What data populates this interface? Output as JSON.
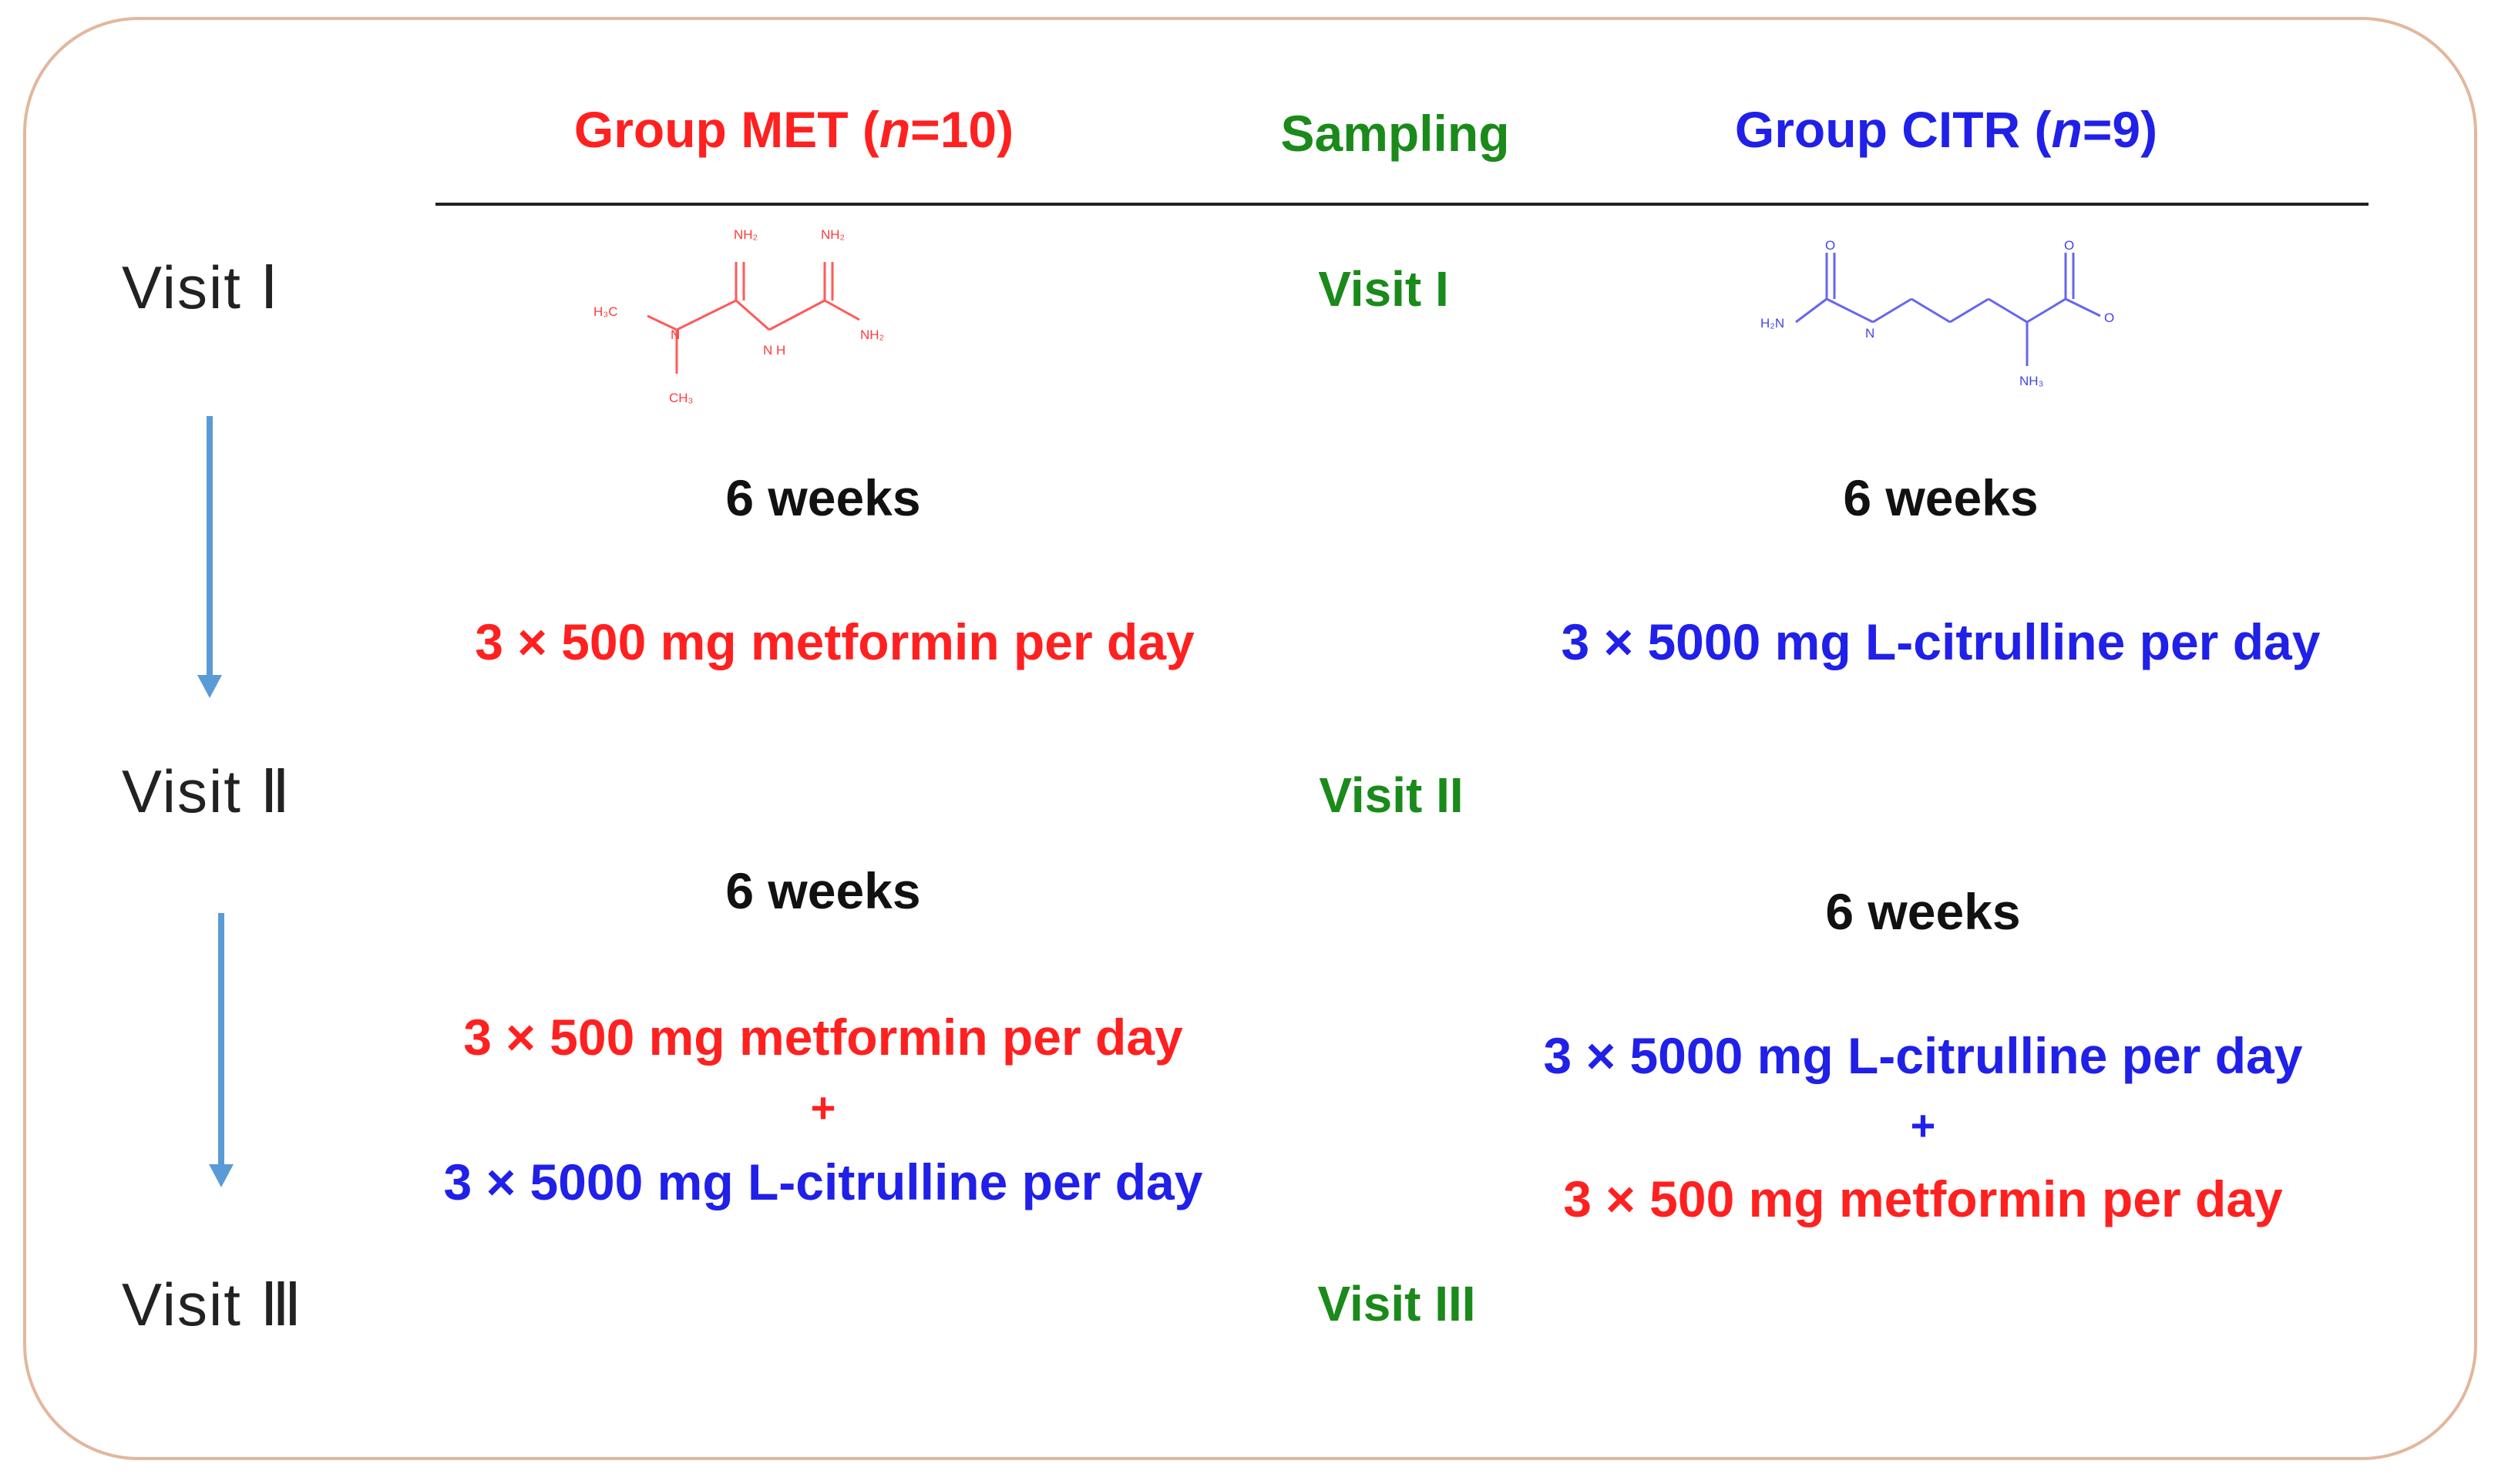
{
  "header": {
    "met_group_prefix": "Group MET (",
    "met_group_n": "n",
    "met_group_suffix": "=10)",
    "sampling": "Sampling",
    "citr_group_prefix": "Group CITR (",
    "citr_group_n": "n",
    "citr_group_suffix": "=9)"
  },
  "visits": {
    "left": [
      "Visit Ⅰ",
      "Visit Ⅱ",
      "Visit Ⅲ"
    ],
    "sampling": [
      "Visit I",
      "Visit II",
      "Visit III"
    ]
  },
  "period1": {
    "met_weeks": "6 weeks",
    "met_dose": "3 × 500 mg metformin per day",
    "citr_weeks": "6 weeks",
    "citr_dose": "3 × 5000 mg L-citrulline per day"
  },
  "period2": {
    "met_weeks": "6 weeks",
    "met_dose_1": "3 × 500 mg metformin per day",
    "met_plus": "+",
    "met_dose_2": "3 × 5000 mg L-citrulline per day",
    "citr_weeks": "6 weeks",
    "citr_dose_1": "3 × 5000 mg L-citrulline per day",
    "citr_plus": "+",
    "citr_dose_2": "3 × 500 mg metformin per day"
  },
  "molecules": {
    "metformin": {
      "nh2_a": "NH₂",
      "nh2_b": "NH₂",
      "nh2_c": "NH₂",
      "h3c": "H₃C",
      "ch3": "CH₃",
      "n": "N",
      "nh": "N H"
    },
    "citrulline": {
      "h2n": "H₂N",
      "n": "N",
      "o1": "O",
      "o2": "O",
      "o3": "O",
      "nh3": "NH₃"
    }
  },
  "colors": {
    "met": "#ff2020",
    "citr": "#2020e8",
    "sampling": "#1a8a1a",
    "arrow": "#5b9bd5",
    "frame": "#e2b79d"
  }
}
